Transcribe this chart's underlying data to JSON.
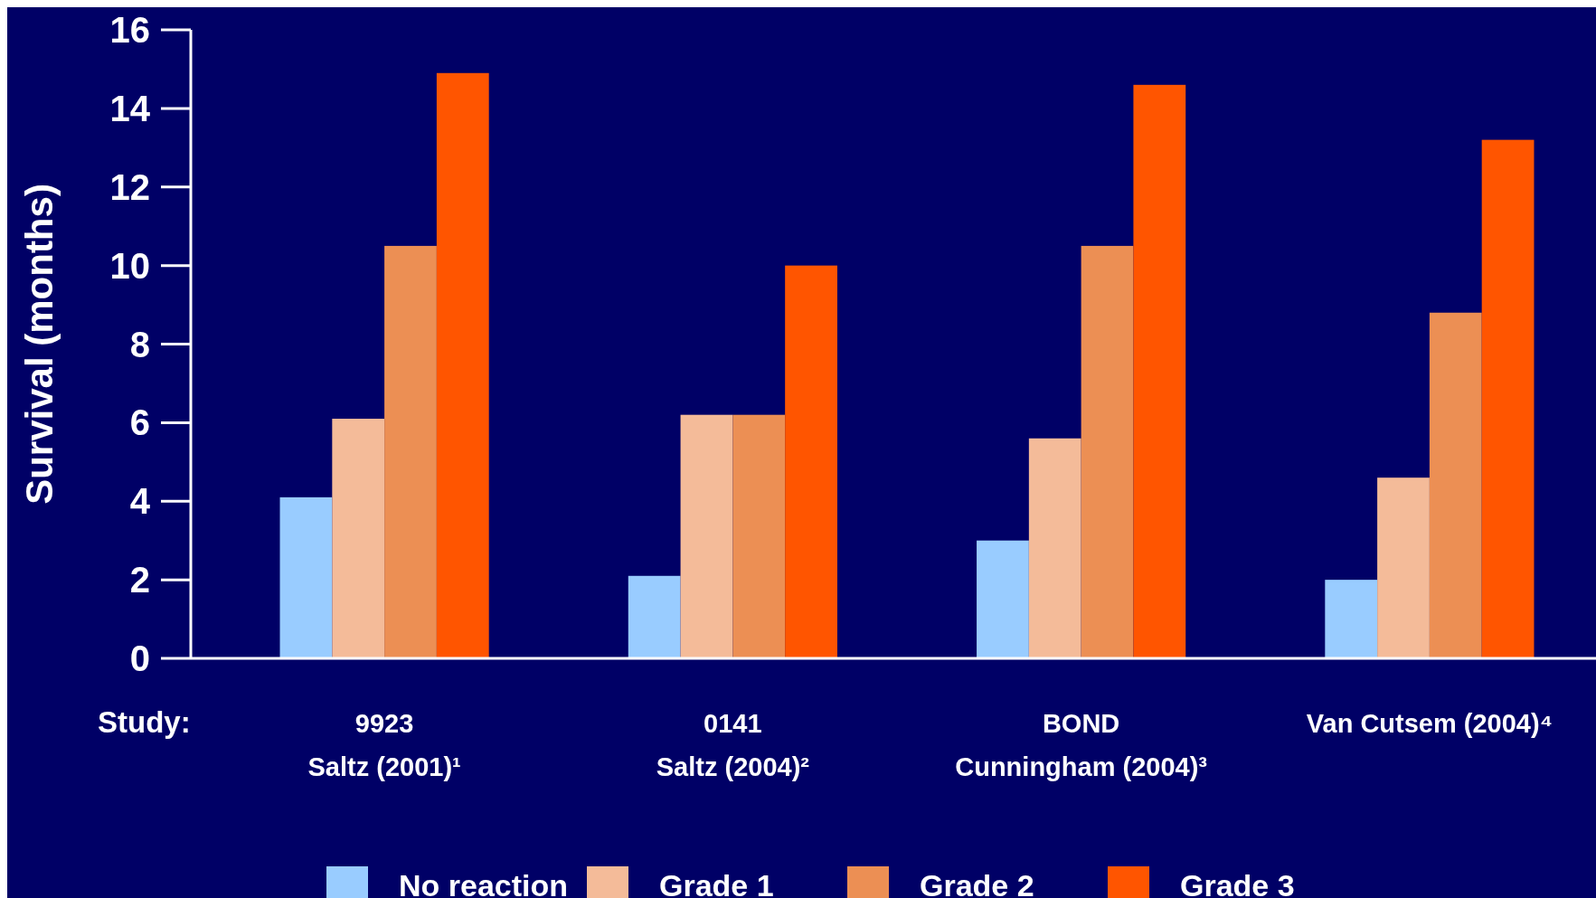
{
  "chart_data": {
    "type": "bar",
    "ylabel": "Survival (months)",
    "xlabel": "Study:",
    "categories": [
      "9923\nSaltz (2001)¹",
      "0141\nSaltz (2004)²",
      "BOND\nCunningham (2004)³",
      "Van Cutsem  (2004)⁴"
    ],
    "series": [
      {
        "name": "No reaction",
        "color": "#99ccff",
        "values": [
          4.1,
          2.1,
          3.0,
          2.0
        ]
      },
      {
        "name": "Grade 1",
        "color": "#f4bb99",
        "values": [
          6.1,
          6.2,
          5.6,
          4.6
        ]
      },
      {
        "name": "Grade 2",
        "color": "#ec8f54",
        "values": [
          10.5,
          6.2,
          10.5,
          8.8
        ]
      },
      {
        "name": "Grade 3",
        "color": "#ff5500",
        "values": [
          14.9,
          10.0,
          14.6,
          13.2
        ]
      }
    ],
    "ylim": [
      0,
      16
    ],
    "yticks": [
      0,
      2,
      4,
      6,
      8,
      10,
      12,
      14,
      16
    ],
    "grid": false,
    "legend": "bottom"
  }
}
